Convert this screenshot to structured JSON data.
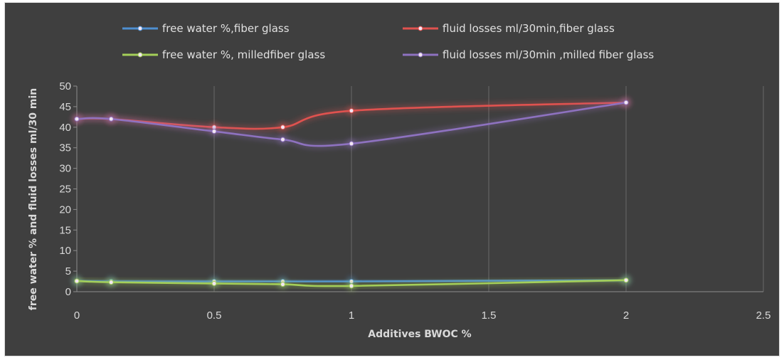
{
  "chart_data": {
    "type": "line",
    "title": "",
    "xlabel": "Additives BWOC %",
    "ylabel": "free water % and fluid losses ml/30 min",
    "xlim": [
      0,
      2.5
    ],
    "ylim": [
      0,
      50
    ],
    "x_ticks": [
      0,
      0.5,
      1,
      1.5,
      2,
      2.5
    ],
    "x_tick_labels": [
      "0",
      "0.5",
      "1",
      "1.5",
      "2",
      "2.5"
    ],
    "y_ticks": [
      0,
      5,
      10,
      15,
      20,
      25,
      30,
      35,
      40,
      45,
      50
    ],
    "y_tick_labels": [
      "0",
      "5",
      "10",
      "15",
      "20",
      "25",
      "30",
      "35",
      "40",
      "45",
      "50"
    ],
    "grid": "vertical",
    "legend_position": "top",
    "series": [
      {
        "name": "free water %,fiber glass",
        "color": "#4e8fd1",
        "x": [
          0,
          0.125,
          0.5,
          0.75,
          1,
          2
        ],
        "y": [
          2.6,
          2.5,
          2.5,
          2.5,
          2.5,
          2.8
        ]
      },
      {
        "name": "fluid losses ml/30min,fiber glass",
        "color": "#e0524f",
        "x": [
          0,
          0.125,
          0.5,
          0.75,
          1,
          2
        ],
        "y": [
          42,
          42,
          40,
          40,
          44,
          46
        ]
      },
      {
        "name": "free water %, milledfiber glass",
        "color": "#a4cf59",
        "x": [
          0,
          0.125,
          0.5,
          0.75,
          1,
          2
        ],
        "y": [
          2.6,
          2.3,
          2.0,
          1.8,
          1.4,
          2.8
        ]
      },
      {
        "name": "fluid losses ml/30min ,milled fiber glass",
        "color": "#8e72c0",
        "x": [
          0,
          0.125,
          0.5,
          0.75,
          1,
          2
        ],
        "y": [
          42,
          42,
          39,
          37,
          36,
          46
        ]
      }
    ]
  }
}
